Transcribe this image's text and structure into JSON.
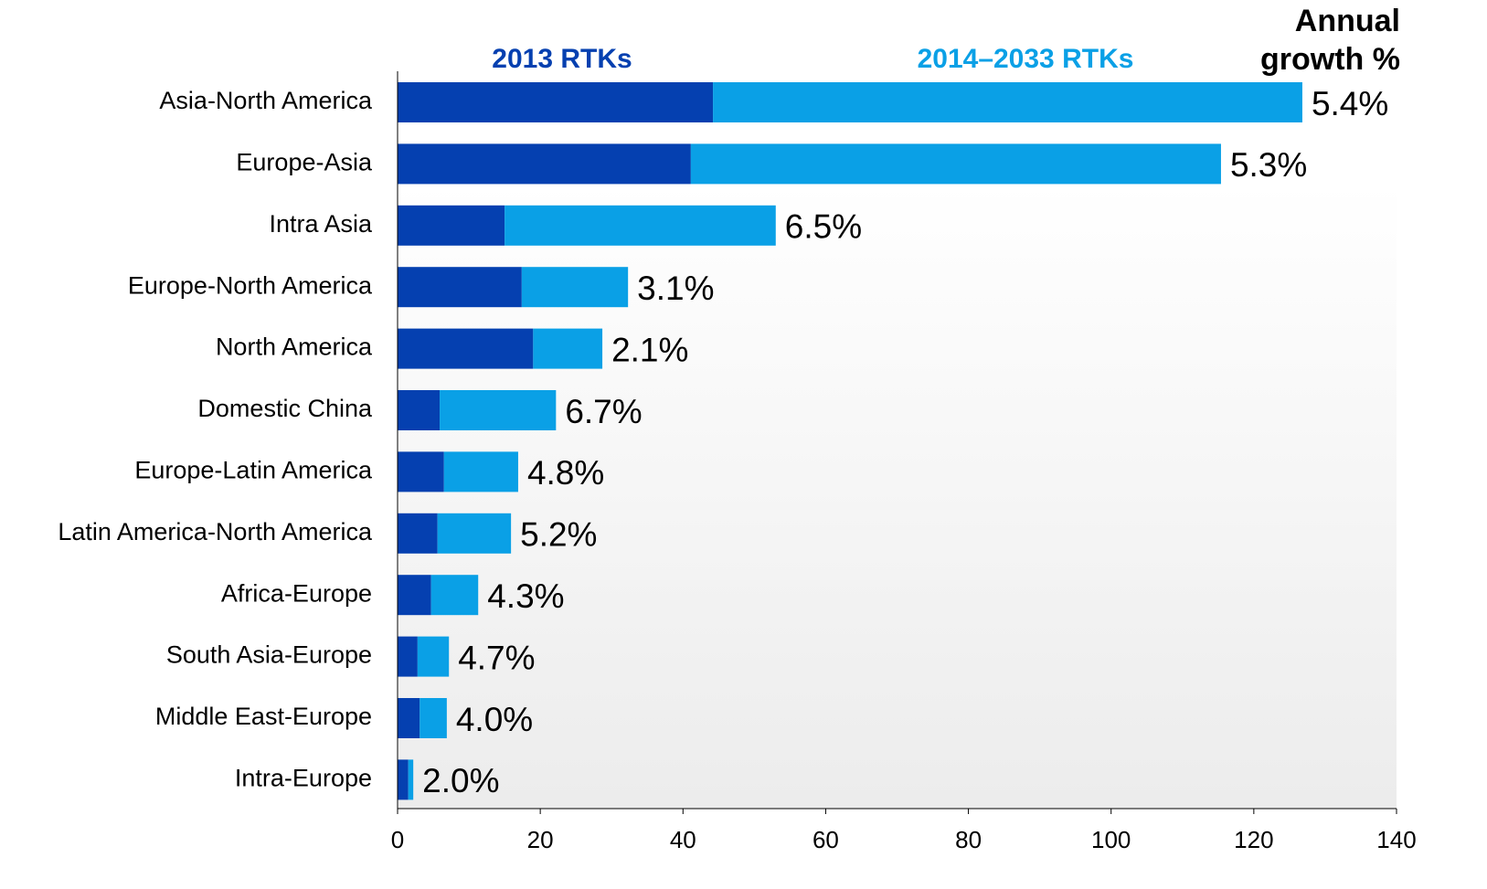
{
  "chart_data": {
    "type": "stacked-bar-horizontal",
    "categories": [
      "Asia-North America",
      "Europe-Asia",
      "Intra Asia",
      "Europe-North America",
      "North America",
      "Domestic China",
      "Europe-Latin America",
      "Latin America-North America",
      "Africa-Europe",
      "South Asia-Europe",
      "Middle East-Europe",
      "Intra-Europe"
    ],
    "series": [
      {
        "name": "2013 RTKs",
        "color": "#0540b0",
        "values": [
          44.2,
          41.1,
          15.0,
          17.4,
          19.0,
          5.9,
          6.5,
          5.6,
          4.7,
          2.8,
          3.1,
          1.5
        ]
      },
      {
        "name": "2014–2033 RTKs",
        "color": "#0aa0e6",
        "values": [
          82.6,
          74.3,
          38.0,
          14.9,
          9.7,
          16.3,
          10.4,
          10.3,
          6.6,
          4.4,
          3.8,
          0.7
        ]
      }
    ],
    "growth_title": "Annual growth %",
    "growth_labels": [
      "5.4%",
      "5.3%",
      "6.5%",
      "3.1%",
      "2.1%",
      "6.7%",
      "4.8%",
      "5.2%",
      "4.3%",
      "4.7%",
      "4.0%",
      "2.0%"
    ],
    "xlim": [
      0,
      140
    ],
    "xticks": [
      0,
      20,
      40,
      60,
      80,
      100,
      120,
      140
    ]
  }
}
